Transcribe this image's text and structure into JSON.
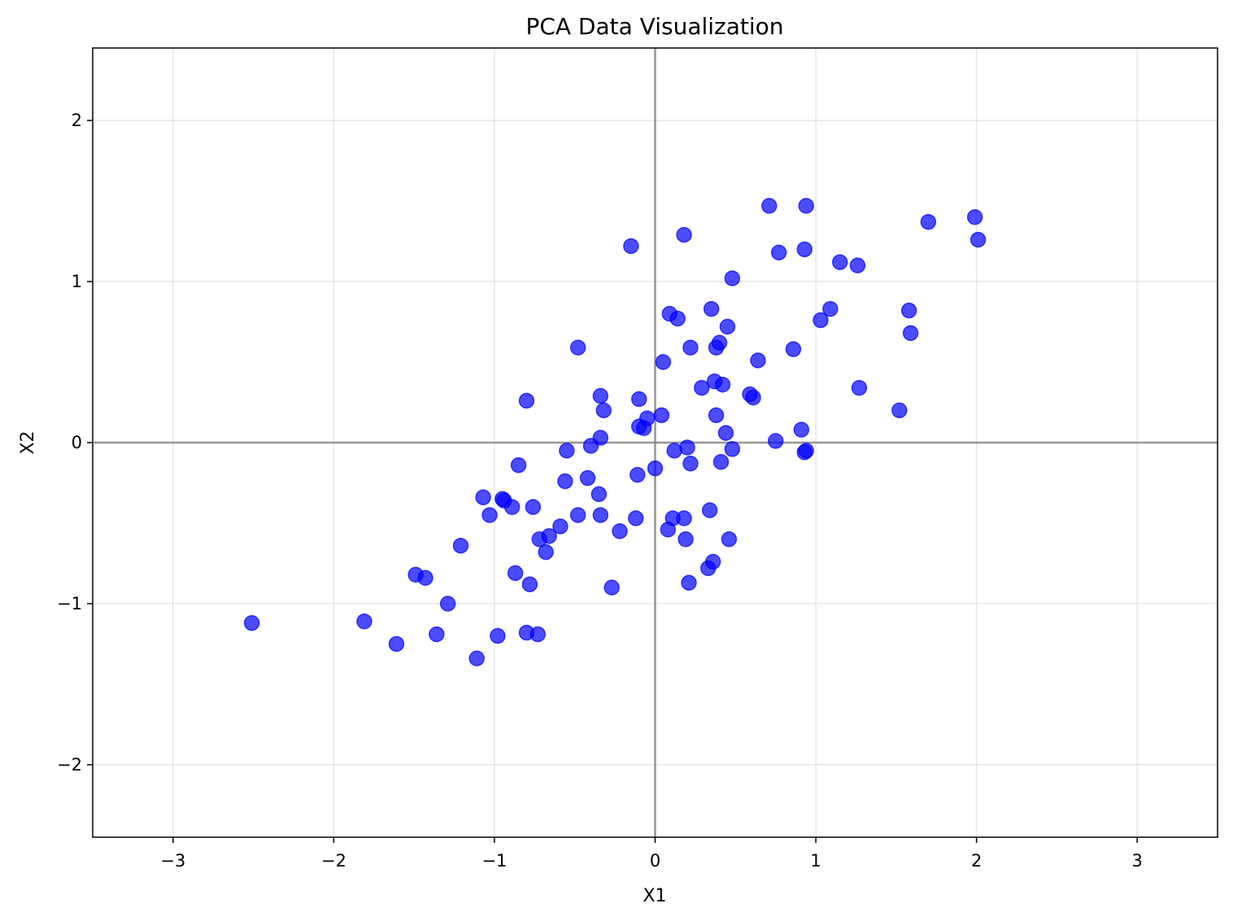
{
  "chart_data": {
    "type": "scatter",
    "title": "PCA Data Visualization",
    "xlabel": "X1",
    "ylabel": "X2",
    "xlim": [
      -3.5,
      3.5
    ],
    "ylim": [
      -2.45,
      2.45
    ],
    "xticks": [
      -3,
      -2,
      -1,
      0,
      1,
      2,
      3
    ],
    "yticks": [
      -2,
      -1,
      0,
      1,
      2
    ],
    "xtick_labels": [
      "−3",
      "−2",
      "−1",
      "0",
      "1",
      "2",
      "3"
    ],
    "ytick_labels": [
      "−2",
      "−1",
      "0",
      "1",
      "2"
    ],
    "grid": true,
    "reference_lines": {
      "x": 0,
      "y": 0
    },
    "point_color": "#0000ff",
    "point_opacity": 0.7,
    "points": [
      [
        -2.51,
        -1.12
      ],
      [
        -1.81,
        -1.11
      ],
      [
        -1.61,
        -1.25
      ],
      [
        -1.49,
        -0.82
      ],
      [
        -1.43,
        -0.84
      ],
      [
        -1.36,
        -1.19
      ],
      [
        -1.29,
        -1.0
      ],
      [
        -1.21,
        -0.64
      ],
      [
        -1.11,
        -1.34
      ],
      [
        -1.07,
        -0.34
      ],
      [
        -1.03,
        -0.45
      ],
      [
        -0.98,
        -1.2
      ],
      [
        -0.95,
        -0.35
      ],
      [
        -0.94,
        -0.36
      ],
      [
        -0.89,
        -0.4
      ],
      [
        -0.87,
        -0.81
      ],
      [
        -0.85,
        -0.14
      ],
      [
        -0.8,
        -1.18
      ],
      [
        -0.8,
        0.26
      ],
      [
        -0.78,
        -0.88
      ],
      [
        -0.76,
        -0.4
      ],
      [
        -0.73,
        -1.19
      ],
      [
        -0.72,
        -0.6
      ],
      [
        -0.68,
        -0.68
      ],
      [
        -0.66,
        -0.58
      ],
      [
        -0.59,
        -0.52
      ],
      [
        -0.56,
        -0.24
      ],
      [
        -0.55,
        -0.05
      ],
      [
        -0.48,
        0.59
      ],
      [
        -0.48,
        -0.45
      ],
      [
        -0.42,
        -0.22
      ],
      [
        -0.4,
        -0.02
      ],
      [
        -0.35,
        -0.32
      ],
      [
        -0.34,
        0.03
      ],
      [
        -0.34,
        -0.45
      ],
      [
        -0.34,
        0.29
      ],
      [
        -0.32,
        0.2
      ],
      [
        -0.27,
        -0.9
      ],
      [
        -0.22,
        -0.55
      ],
      [
        -0.15,
        1.22
      ],
      [
        -0.12,
        -0.47
      ],
      [
        -0.11,
        -0.2
      ],
      [
        -0.1,
        0.27
      ],
      [
        -0.1,
        0.1
      ],
      [
        -0.07,
        0.09
      ],
      [
        -0.05,
        0.15
      ],
      [
        0.0,
        -0.16
      ],
      [
        0.04,
        0.17
      ],
      [
        0.05,
        0.5
      ],
      [
        0.08,
        -0.54
      ],
      [
        0.09,
        0.8
      ],
      [
        0.11,
        -0.47
      ],
      [
        0.12,
        -0.05
      ],
      [
        0.14,
        0.77
      ],
      [
        0.18,
        1.29
      ],
      [
        0.18,
        -0.47
      ],
      [
        0.19,
        -0.6
      ],
      [
        0.2,
        -0.03
      ],
      [
        0.21,
        -0.87
      ],
      [
        0.22,
        0.59
      ],
      [
        0.22,
        -0.13
      ],
      [
        0.29,
        0.34
      ],
      [
        0.33,
        -0.78
      ],
      [
        0.34,
        -0.42
      ],
      [
        0.35,
        0.83
      ],
      [
        0.36,
        -0.74
      ],
      [
        0.37,
        0.38
      ],
      [
        0.38,
        0.59
      ],
      [
        0.38,
        0.17
      ],
      [
        0.4,
        0.62
      ],
      [
        0.41,
        -0.12
      ],
      [
        0.42,
        0.36
      ],
      [
        0.44,
        0.06
      ],
      [
        0.45,
        0.72
      ],
      [
        0.46,
        -0.6
      ],
      [
        0.48,
        -0.04
      ],
      [
        0.48,
        1.02
      ],
      [
        0.59,
        0.3
      ],
      [
        0.61,
        0.28
      ],
      [
        0.64,
        0.51
      ],
      [
        0.71,
        1.47
      ],
      [
        0.75,
        0.01
      ],
      [
        0.77,
        1.18
      ],
      [
        0.86,
        0.58
      ],
      [
        0.91,
        0.08
      ],
      [
        0.93,
        1.2
      ],
      [
        0.93,
        -0.06
      ],
      [
        0.94,
        1.47
      ],
      [
        0.94,
        -0.05
      ],
      [
        1.03,
        0.76
      ],
      [
        1.09,
        0.83
      ],
      [
        1.15,
        1.12
      ],
      [
        1.26,
        1.1
      ],
      [
        1.27,
        0.34
      ],
      [
        1.52,
        0.2
      ],
      [
        1.58,
        0.82
      ],
      [
        1.59,
        0.68
      ],
      [
        1.7,
        1.37
      ],
      [
        1.99,
        1.4
      ],
      [
        2.01,
        1.26
      ]
    ]
  }
}
